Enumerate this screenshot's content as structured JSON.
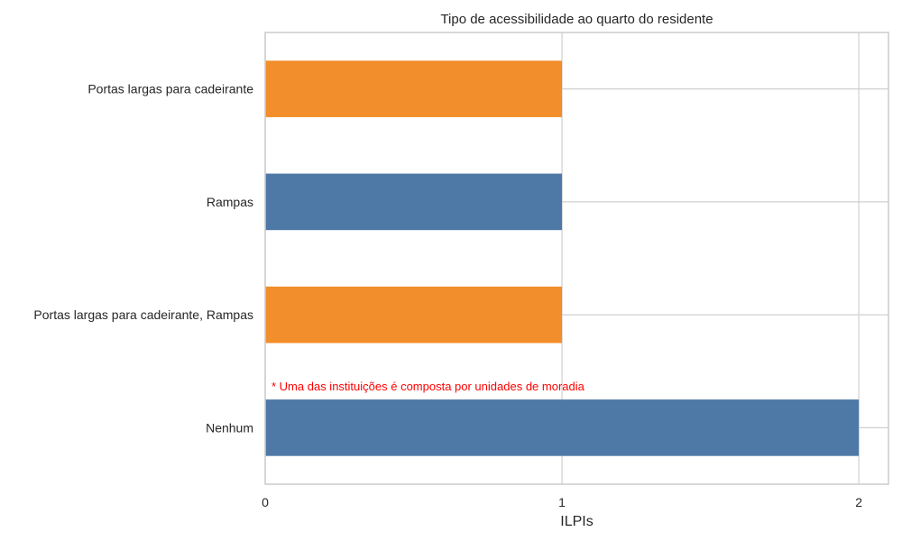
{
  "chart_data": {
    "type": "bar",
    "orientation": "horizontal",
    "title": "Tipo de acessibilidade ao quarto do residente",
    "xlabel": "ILPIs",
    "ylabel": "",
    "categories": [
      "Portas largas para cadeirante",
      "Rampas",
      "Portas largas para cadeirante, Rampas",
      "Nenhum"
    ],
    "values": [
      1,
      1,
      1,
      2
    ],
    "bar_colors": [
      "#f28e2b",
      "#4e79a7",
      "#f28e2b",
      "#4e79a7"
    ],
    "xlim": [
      0,
      2.1
    ],
    "xticks": [
      "0",
      "1",
      "2"
    ],
    "grid": true,
    "annotation": {
      "text": "* Uma das instituições é composta por unidades de moradia",
      "color": "#ff0000"
    }
  }
}
